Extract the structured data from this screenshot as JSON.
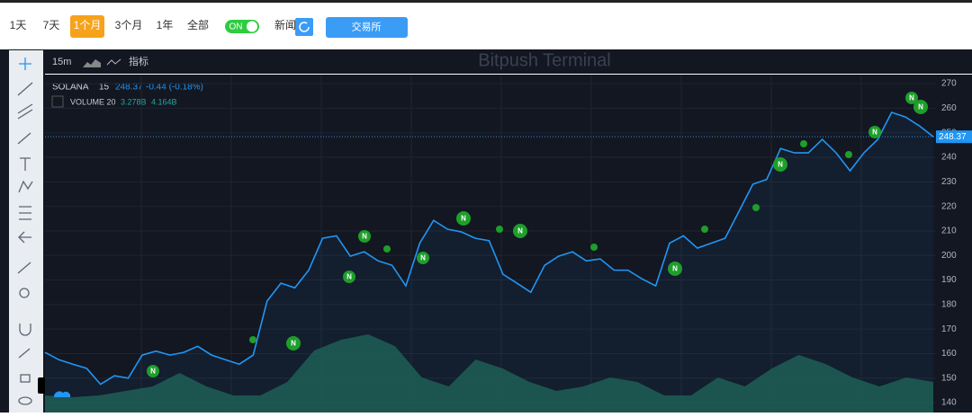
{
  "top_bar": {
    "ranges": [
      "1天",
      "7天",
      "1个月",
      "3个月",
      "1年",
      "全部"
    ],
    "toggle": "ON",
    "news": "新闻",
    "exchange": "交易所"
  },
  "toolbar": {
    "interval": "15m",
    "indicators": "指标"
  },
  "chart_data": {
    "type": "line",
    "title": "Bitpush Terminal",
    "interval": "15",
    "change": "-0.44 (-0.18%)",
    "series": [
      {
        "name": "SOLANA",
        "color": "#2196f3",
        "values": [
          160.5,
          157.5,
          155.7,
          154,
          147.5,
          151,
          150,
          159.4,
          161,
          159.4,
          160.5,
          163,
          159.4,
          157.5,
          155.7,
          159.4,
          181.4,
          188.7,
          186.8,
          194,
          207,
          208,
          199.7,
          201.5,
          197.8,
          196,
          187.6,
          205,
          214.3,
          210.7,
          209.6,
          207,
          206,
          192.3,
          188.7,
          185,
          196,
          199.7,
          201.5,
          197.8,
          198.6,
          194,
          194,
          190.5,
          187.6,
          205,
          208,
          203,
          205,
          207,
          218,
          229,
          231,
          243.6,
          241.8,
          241.8,
          247.3,
          241.8,
          234.5,
          241.8,
          247.3,
          258.3,
          256.4,
          252.8,
          248.37
        ]
      }
    ],
    "volume": {
      "name": "VOLUME 20",
      "color": "#1f5c4e",
      "values": [
        1.83,
        1.64,
        1.83,
        2.31,
        2.8,
        4.24,
        2.8,
        1.83,
        1.83,
        3.28,
        6.65,
        7.81,
        8.39,
        7.13,
        3.76,
        2.8,
        5.69,
        4.72,
        3.28,
        2.31,
        2.8,
        3.76,
        3.28,
        1.83,
        1.83,
        3.76,
        2.8,
        4.72,
        6.17,
        5.21,
        3.76,
        2.8,
        3.76,
        3.278
      ],
      "labels": [
        "3.278B",
        "4.164B"
      ]
    },
    "ylim": [
      136,
      273.7
    ],
    "yticks": [
      140,
      150,
      160,
      170,
      180,
      190,
      200,
      210,
      220,
      230,
      240,
      250,
      260,
      270
    ],
    "grid": true,
    "news_label": "N"
  }
}
